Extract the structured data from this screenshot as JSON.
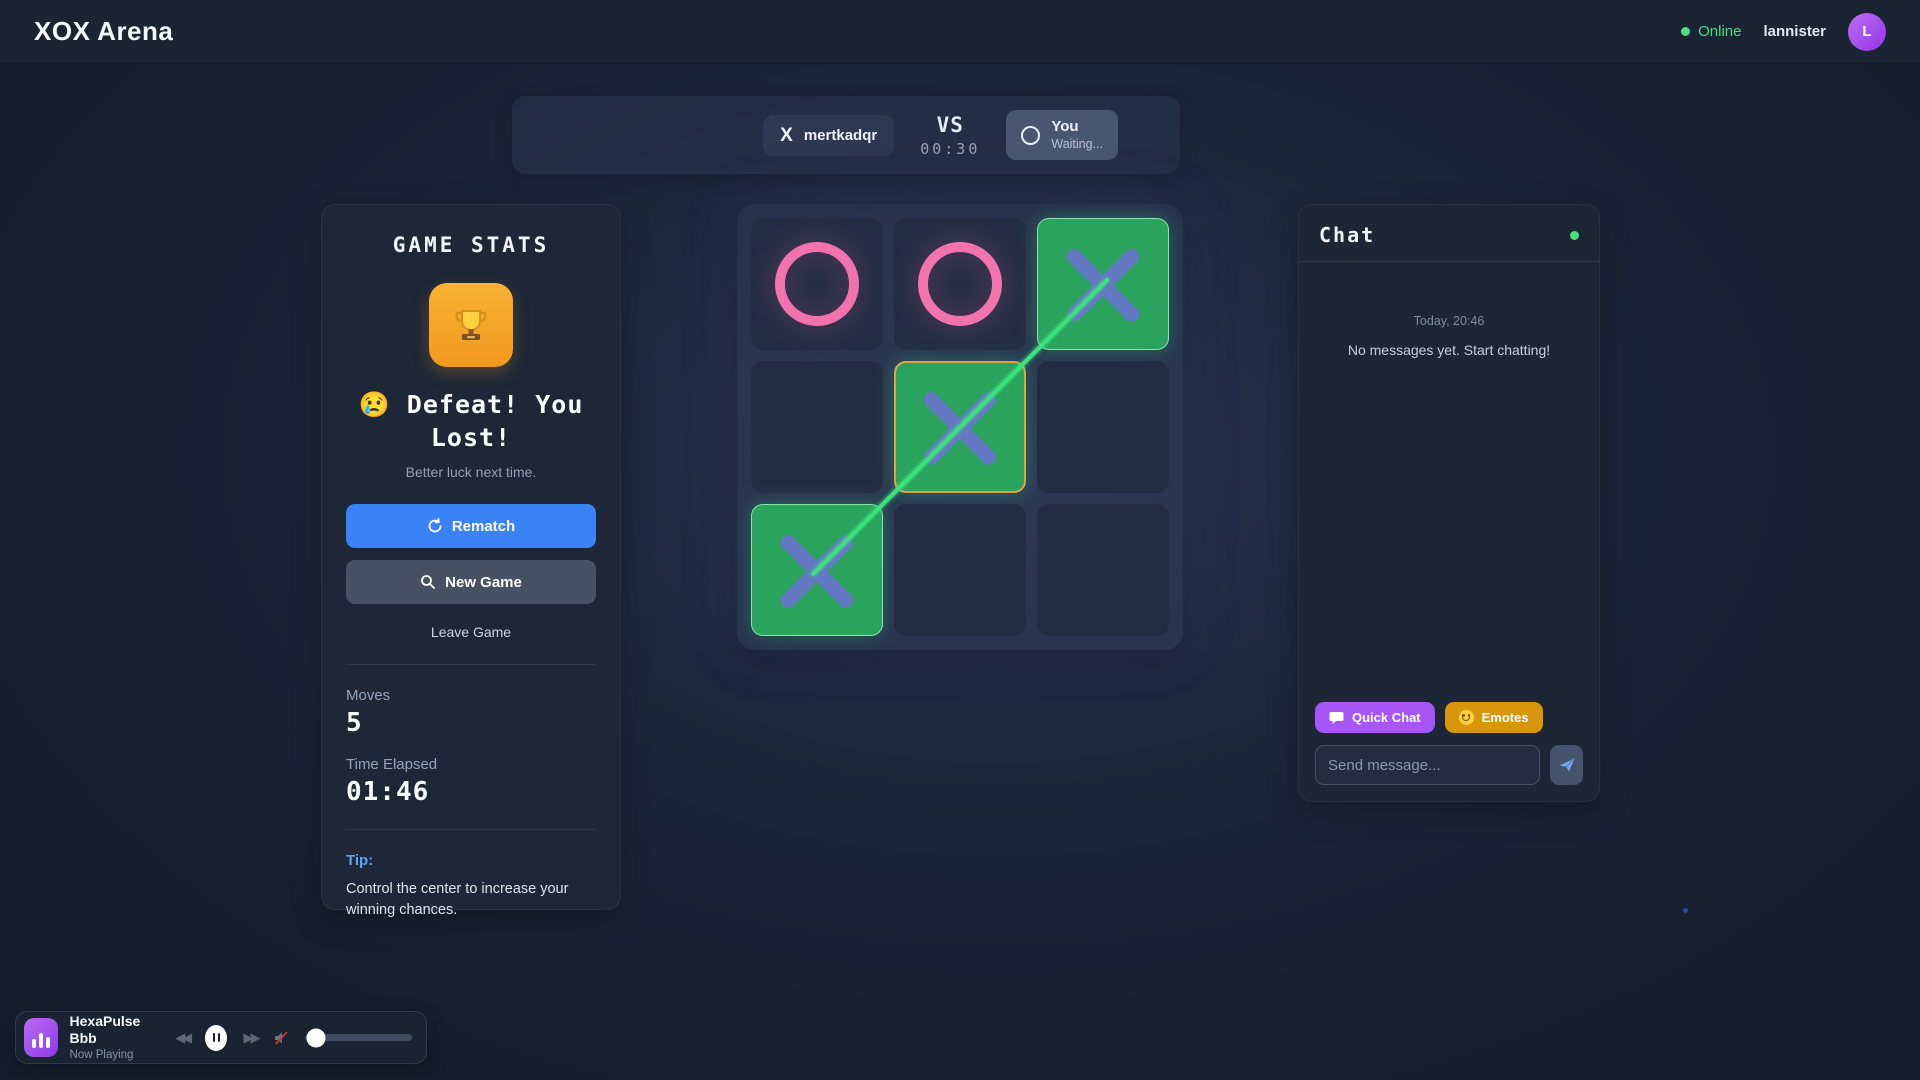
{
  "header": {
    "title": "XOX Arena",
    "status_label": "Online",
    "username": "lannister",
    "avatar_initial": "L"
  },
  "match_bar": {
    "opponent": {
      "symbol": "X",
      "name": "mertkadqr"
    },
    "vs_label": "VS",
    "timer": "00:30",
    "you": {
      "symbol": "O",
      "name": "You",
      "status": "Waiting..."
    }
  },
  "stats_panel": {
    "title": "GAME STATS",
    "result_title": "😢 Defeat! You Lost!",
    "result_subtitle": "Better luck next time.",
    "rematch_label": "Rematch",
    "new_game_label": "New Game",
    "leave_label": "Leave Game",
    "moves_label": "Moves",
    "moves_value": "5",
    "time_label": "Time Elapsed",
    "time_value": "01:46",
    "tip_label": "Tip:",
    "tip_text": "Control the center to increase your winning chances."
  },
  "board": {
    "cells": [
      [
        "O",
        "O",
        "X"
      ],
      [
        "",
        "X",
        ""
      ],
      [
        "X",
        "",
        ""
      ]
    ],
    "winning_cells": [
      [
        0,
        2
      ],
      [
        1,
        1
      ],
      [
        2,
        0
      ]
    ],
    "last_move_cell": [
      1,
      1
    ],
    "x_color": "#6378c2",
    "o_color": "#f272ae",
    "win_cell_color": "#2aa35c",
    "win_line_color": "#3be47a",
    "last_move_border_color": "#dfa33f"
  },
  "chat": {
    "title": "Chat",
    "date_label": "Today, 20:46",
    "empty_message": "No messages yet. Start chatting!",
    "quick_chat_label": "Quick Chat",
    "emotes_label": "Emotes",
    "input_placeholder": "Send message..."
  },
  "music_player": {
    "title": "HexaPulse Bbb",
    "status": "Now Playing",
    "volume_percent": 8,
    "muted": true
  },
  "colors": {
    "accent_blue": "#3b82f6",
    "accent_purple": "#a855f7",
    "accent_amber": "#d8960d",
    "online_green": "#4ade80",
    "tip_blue": "#60a5fa",
    "trophy_orange": "#f9b233"
  }
}
